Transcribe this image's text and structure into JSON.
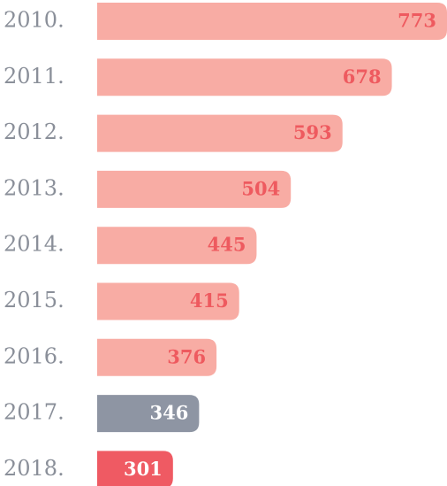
{
  "chart_data": {
    "type": "bar",
    "orientation": "horizontal",
    "categories": [
      "2010.",
      "2011.",
      "2012.",
      "2013.",
      "2014.",
      "2015.",
      "2016.",
      "2017.",
      "2018."
    ],
    "values": [
      773,
      678,
      593,
      504,
      445,
      415,
      376,
      346,
      301
    ],
    "colors": [
      "#f8aca4",
      "#f8aca4",
      "#f8aca4",
      "#f8aca4",
      "#f8aca4",
      "#f8aca4",
      "#f8aca4",
      "#8e95a3",
      "#ef5a63"
    ],
    "label_colors": [
      "#ee5a5f",
      "#ee5a5f",
      "#ee5a5f",
      "#ee5a5f",
      "#ee5a5f",
      "#ee5a5f",
      "#ee5a5f",
      "#ffffff",
      "#ffffff"
    ]
  }
}
